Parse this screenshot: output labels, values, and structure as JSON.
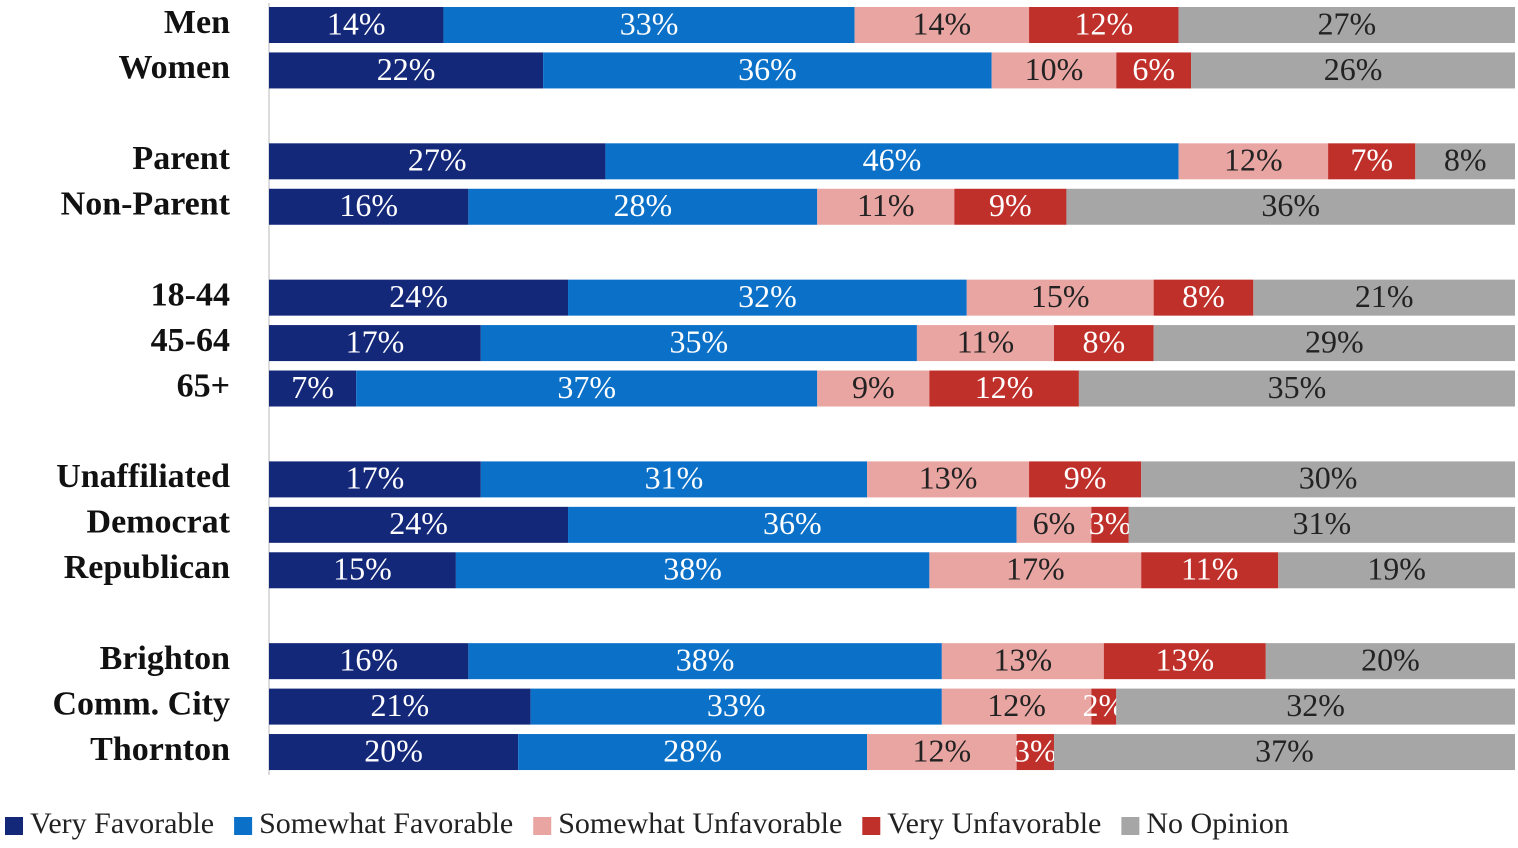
{
  "chart_data": {
    "type": "stacked_barh",
    "categories": [
      "Men",
      "Women",
      null,
      "Parent",
      "Non-Parent",
      null,
      "18-44",
      "45-64",
      "65+",
      null,
      "Unaffiliated",
      "Democrat",
      "Republican",
      null,
      "Brighton",
      "Comm. City",
      "Thornton"
    ],
    "xlim": [
      0,
      100
    ],
    "legend": "bottom",
    "series": [
      {
        "name": "Very Favorable",
        "color": "#14287a",
        "values": [
          14,
          22,
          null,
          27,
          16,
          null,
          24,
          17,
          7,
          null,
          17,
          24,
          15,
          null,
          16,
          21,
          20
        ],
        "value_labels": [
          "14%",
          "22%",
          null,
          "27%",
          "16%",
          null,
          "24%",
          "17%",
          "7%",
          null,
          "17%",
          "24%",
          "15%",
          null,
          "16%",
          "21%",
          "20%"
        ]
      },
      {
        "name": "Somewhat Favorable",
        "color": "#0a70c8",
        "values": [
          33,
          36,
          null,
          46,
          28,
          null,
          32,
          35,
          37,
          null,
          31,
          36,
          38,
          null,
          38,
          33,
          28
        ],
        "value_labels": [
          "33%",
          "36%",
          null,
          "46%",
          "28%",
          null,
          "32%",
          "35%",
          "37%",
          null,
          "31%",
          "36%",
          "38%",
          null,
          "38%",
          "33%",
          "28%"
        ]
      },
      {
        "name": "Somewhat Unfavorable",
        "color": "#e9a5a2",
        "values": [
          14,
          10,
          null,
          12,
          11,
          null,
          15,
          11,
          9,
          null,
          13,
          6,
          17,
          null,
          13,
          12,
          12
        ],
        "value_labels": [
          "14%",
          "10%",
          null,
          "12%",
          "11%",
          null,
          "15%",
          "11%",
          "9%",
          null,
          "13%",
          "6%",
          "17%",
          null,
          "13%",
          "12%",
          "12%"
        ]
      },
      {
        "name": "Very Unfavorable",
        "color": "#c0302b",
        "values": [
          12,
          6,
          null,
          7,
          9,
          null,
          8,
          8,
          12,
          null,
          9,
          3,
          11,
          null,
          13,
          2,
          3
        ],
        "value_labels": [
          "12%",
          "6%",
          null,
          "7%",
          "9%",
          null,
          "8%",
          "8%",
          "12%",
          null,
          "9%",
          "3%",
          "11%",
          null,
          "13%",
          "2%",
          "3%"
        ]
      },
      {
        "name": "No Opinion",
        "color": "#a6a6a6",
        "values": [
          27,
          26,
          null,
          8,
          36,
          null,
          21,
          29,
          35,
          null,
          30,
          31,
          19,
          null,
          20,
          32,
          37
        ],
        "value_labels": [
          "27%",
          "26%",
          null,
          "8%",
          "36%",
          null,
          "21%",
          "29%",
          "35%",
          null,
          "30%",
          "31%",
          "19%",
          null,
          "20%",
          "32%",
          "37%"
        ]
      }
    ]
  }
}
